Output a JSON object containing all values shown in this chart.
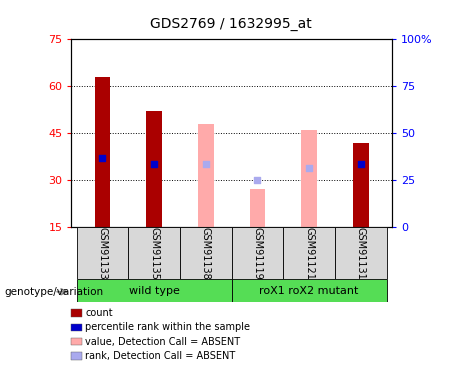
{
  "title": "GDS2769 / 1632995_at",
  "samples": [
    "GSM91133",
    "GSM91135",
    "GSM91138",
    "GSM91119",
    "GSM91121",
    "GSM91131"
  ],
  "bar_data": {
    "GSM91133": {
      "count": 63,
      "rank": 37,
      "absent_value": null,
      "absent_rank": null,
      "is_absent": false
    },
    "GSM91135": {
      "count": 52,
      "rank": 35,
      "absent_value": null,
      "absent_rank": null,
      "is_absent": false
    },
    "GSM91138": {
      "count": null,
      "rank": null,
      "absent_value": 48,
      "absent_rank": 35,
      "is_absent": true
    },
    "GSM91119": {
      "count": null,
      "rank": null,
      "absent_value": 27,
      "absent_rank": 30,
      "is_absent": true
    },
    "GSM91121": {
      "count": null,
      "rank": null,
      "absent_value": 46,
      "absent_rank": 34,
      "is_absent": true
    },
    "GSM91131": {
      "count": 42,
      "rank": 35,
      "absent_value": null,
      "absent_rank": null,
      "is_absent": false
    }
  },
  "y_min": 15,
  "y_max": 75,
  "yticks_left": [
    15,
    30,
    45,
    60,
    75
  ],
  "yticks_right_vals": [
    0,
    25,
    50,
    75,
    100
  ],
  "yticks_right_labels": [
    "0",
    "25",
    "50",
    "75",
    "100%"
  ],
  "grid_vals": [
    30,
    45,
    60
  ],
  "bar_width": 0.3,
  "dark_red": "#aa0000",
  "blue": "#0000cc",
  "pink": "#ffaaaa",
  "light_blue": "#aaaaee",
  "cell_bg": "#d8d8d8",
  "group_green": "#55dd55",
  "legend_items": [
    {
      "color": "#aa0000",
      "label": "count"
    },
    {
      "color": "#0000cc",
      "label": "percentile rank within the sample"
    },
    {
      "color": "#ffaaaa",
      "label": "value, Detection Call = ABSENT"
    },
    {
      "color": "#aaaaee",
      "label": "rank, Detection Call = ABSENT"
    }
  ]
}
